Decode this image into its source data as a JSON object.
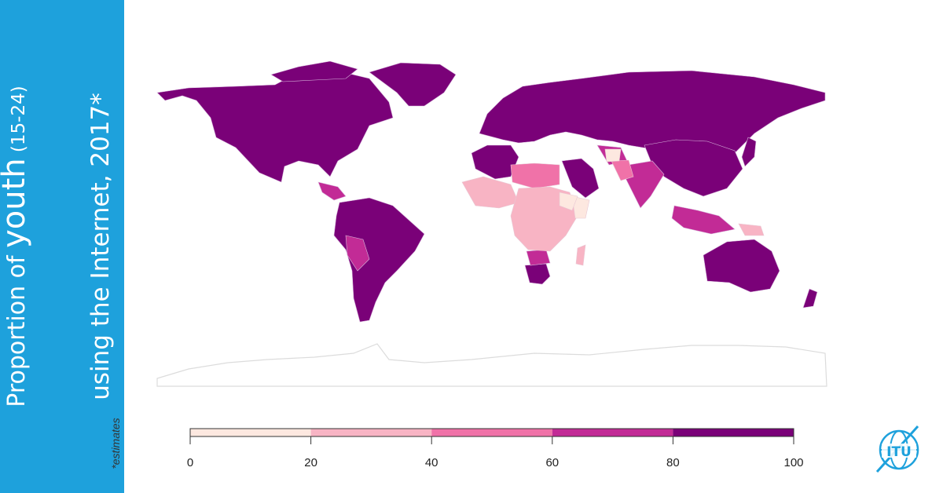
{
  "title": {
    "line1_pre": "Proportion of ",
    "line1_emph": "youth",
    "line1_post": " (15-24)",
    "line2": "using the Internet, 2017*",
    "note": "*estimates"
  },
  "legend": {
    "ticks": [
      "0",
      "20",
      "40",
      "60",
      "80",
      "100"
    ],
    "bins": [
      {
        "range": "0-20",
        "color": "#fde8e0"
      },
      {
        "range": "20-40",
        "color": "#f8b4c4"
      },
      {
        "range": "40-60",
        "color": "#f072a8"
      },
      {
        "range": "60-80",
        "color": "#c22b96"
      },
      {
        "range": "80-100",
        "color": "#7a0178"
      }
    ]
  },
  "colors": {
    "sidebar": "#1ea1dc",
    "antarctica": "#e8e8e8"
  },
  "logo": {
    "text": "ITU"
  }
}
